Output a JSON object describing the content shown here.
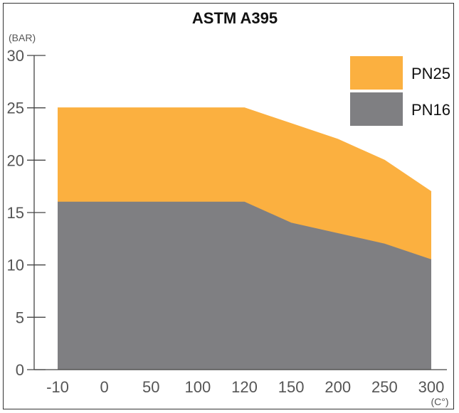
{
  "chart_data": {
    "type": "area",
    "title": "ASTM A395",
    "y_unit_label": "(BAR)",
    "x_unit_label": "(C°)",
    "categories": [
      "-10",
      "0",
      "50",
      "100",
      "120",
      "150",
      "200",
      "250",
      "300"
    ],
    "ylim": [
      0,
      30
    ],
    "yticks": [
      "0",
      "5",
      "10",
      "15",
      "20",
      "25",
      "30"
    ],
    "legend_position": "top-right",
    "grid": false,
    "series": [
      {
        "name": "PN25",
        "color": "#FBB040",
        "values": [
          25,
          25,
          25,
          25,
          25,
          23.5,
          22,
          20,
          17
        ]
      },
      {
        "name": "PN16",
        "color": "#7F7F82",
        "values": [
          16,
          16,
          16,
          16,
          16,
          14,
          13,
          12,
          10.5
        ]
      }
    ]
  }
}
